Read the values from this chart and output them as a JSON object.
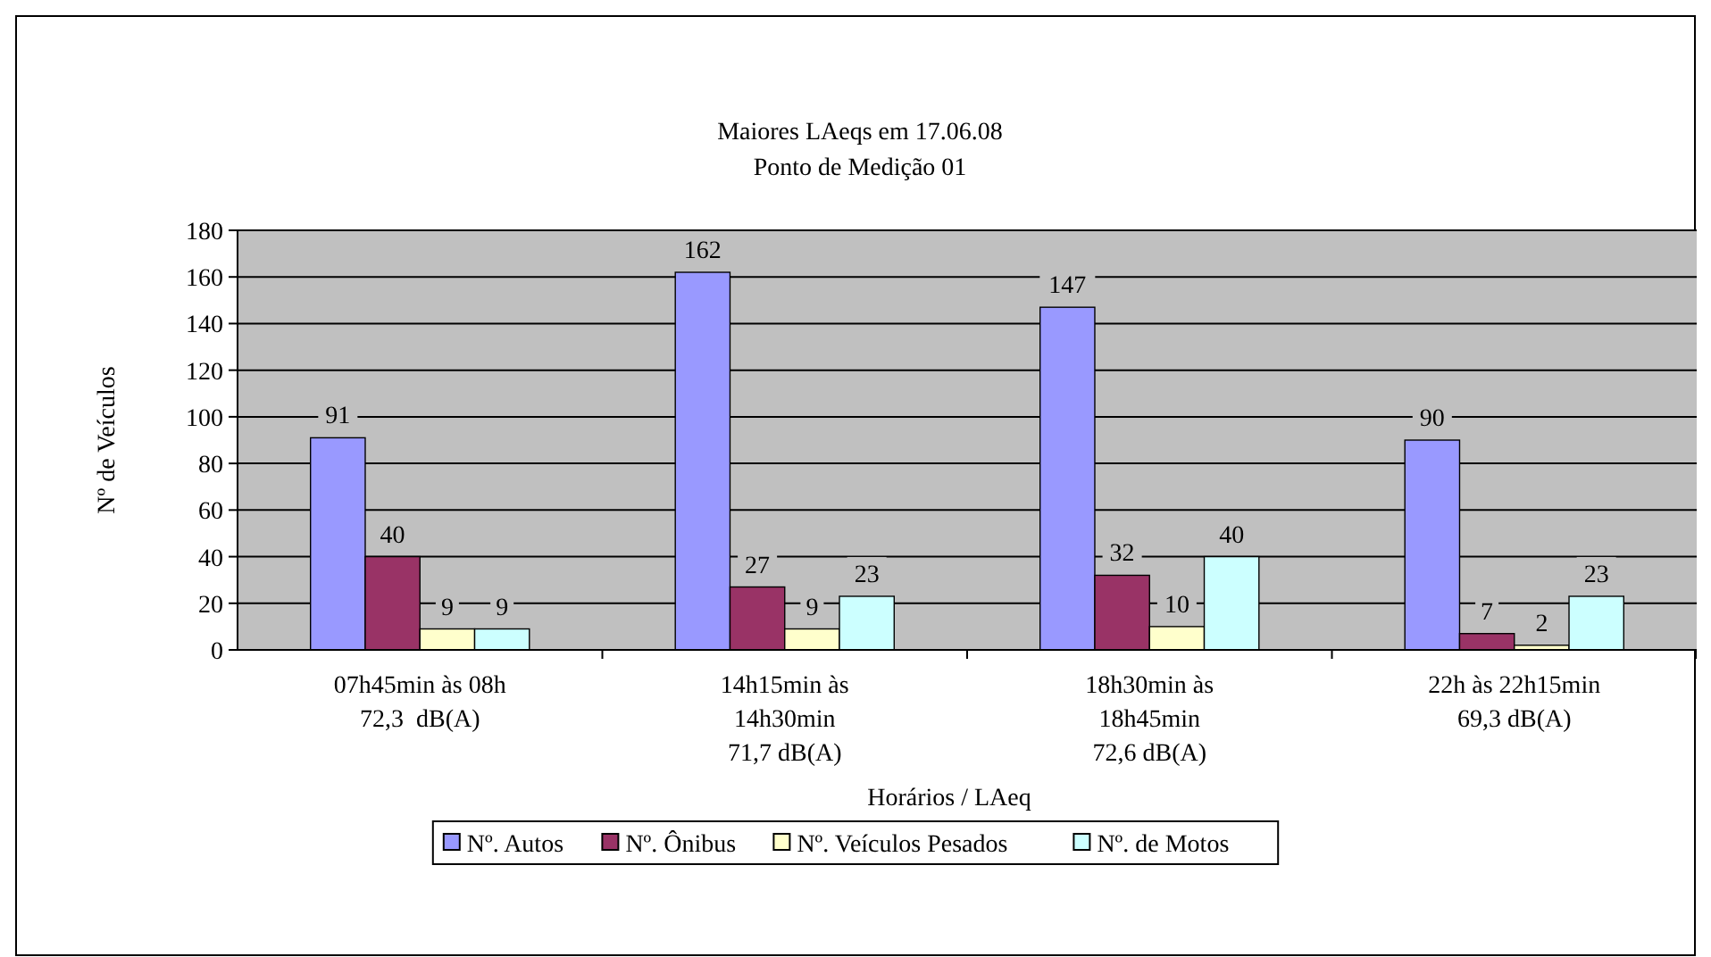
{
  "chart_data": {
    "type": "bar",
    "title": "Maiores LAeqs em 17.06.08\nPonto de Medição 01",
    "xlabel": "Horários / LAeq",
    "ylabel": "Nº de Veículos",
    "categories": [
      "07h45min às 08h\n72,3  dB(A)",
      "14h15min às\n14h30min\n71,7 dB(A)",
      "18h30min às\n18h45min\n72,6 dB(A)",
      "22h às 22h15min\n69,3 dB(A)"
    ],
    "series": [
      {
        "name": "Nº. Autos",
        "color": "#9999ff",
        "values": [
          91,
          162,
          147,
          90
        ]
      },
      {
        "name": "Nº. Ônibus",
        "color": "#993366",
        "values": [
          40,
          27,
          32,
          7
        ]
      },
      {
        "name": "Nº. Veículos Pesados",
        "color": "#ffffcc",
        "values": [
          9,
          9,
          10,
          2
        ]
      },
      {
        "name": "Nº. de Motos",
        "color": "#ccffff",
        "values": [
          9,
          23,
          40,
          23
        ]
      }
    ],
    "ylim": [
      0,
      180
    ],
    "yticks": [
      0,
      20,
      40,
      60,
      80,
      100,
      120,
      140,
      160,
      180
    ],
    "grid": "y",
    "legend": "bottom",
    "data_labels": true
  }
}
